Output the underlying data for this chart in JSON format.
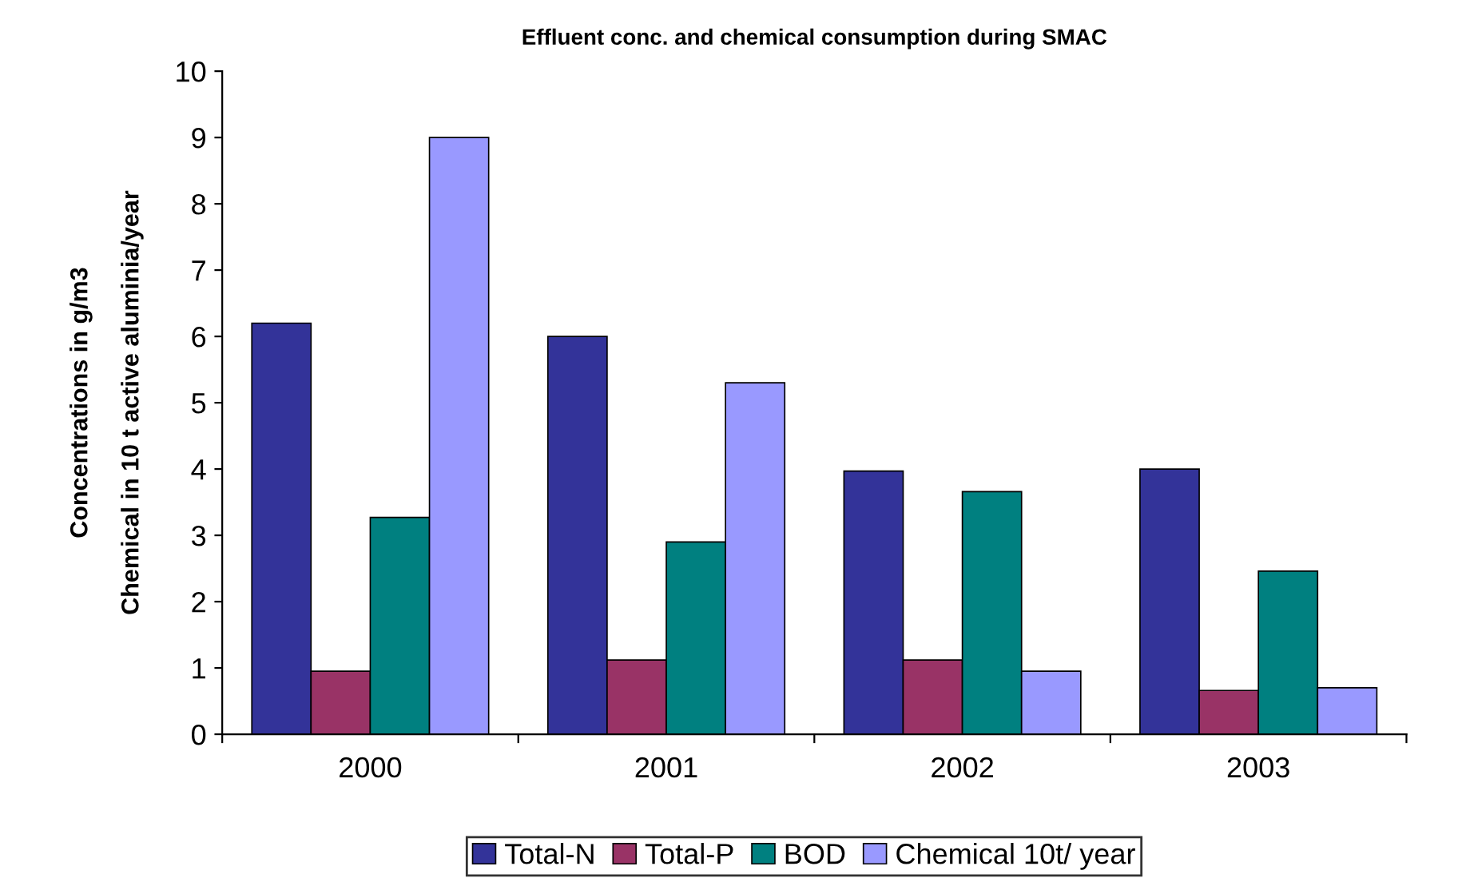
{
  "chart_data": {
    "type": "bar",
    "title": "Effluent conc. and chemical consumption during SMAC",
    "ylabel": "Concentrations in g/m3\nChemical in 10 t active aluminia/year",
    "categories": [
      "2000",
      "2001",
      "2002",
      "2003"
    ],
    "series": [
      {
        "name": "Total-N",
        "color": "#333399",
        "values": [
          6.2,
          6.0,
          3.97,
          4.0
        ]
      },
      {
        "name": "Total-P",
        "color": "#993366",
        "values": [
          0.95,
          1.12,
          1.12,
          0.66
        ]
      },
      {
        "name": "BOD",
        "color": "#008080",
        "values": [
          3.27,
          2.9,
          3.66,
          2.46
        ]
      },
      {
        "name": "Chemical 10t/ year",
        "color": "#9999ff",
        "values": [
          9.0,
          5.3,
          0.95,
          0.7
        ]
      }
    ],
    "ylim": [
      0,
      10
    ],
    "yticks": [
      0,
      1,
      2,
      3,
      4,
      5,
      6,
      7,
      8,
      9,
      10
    ],
    "grid": false,
    "legend": "bottom"
  }
}
